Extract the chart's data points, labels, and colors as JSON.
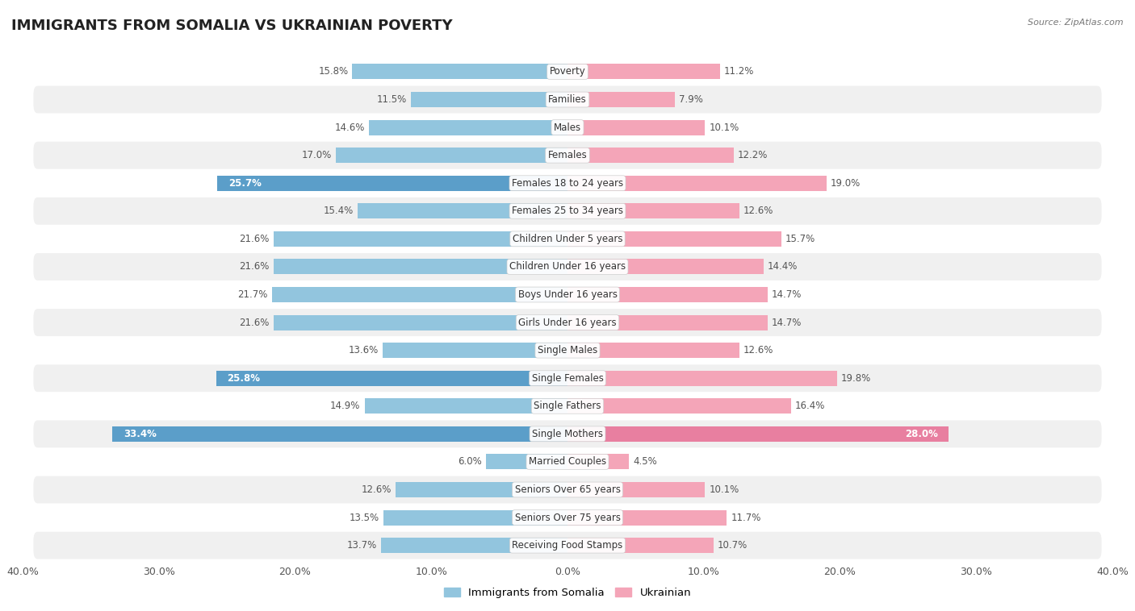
{
  "title": "IMMIGRANTS FROM SOMALIA VS UKRAINIAN POVERTY",
  "source": "Source: ZipAtlas.com",
  "categories": [
    "Poverty",
    "Families",
    "Males",
    "Females",
    "Females 18 to 24 years",
    "Females 25 to 34 years",
    "Children Under 5 years",
    "Children Under 16 years",
    "Boys Under 16 years",
    "Girls Under 16 years",
    "Single Males",
    "Single Females",
    "Single Fathers",
    "Single Mothers",
    "Married Couples",
    "Seniors Over 65 years",
    "Seniors Over 75 years",
    "Receiving Food Stamps"
  ],
  "somalia_values": [
    15.8,
    11.5,
    14.6,
    17.0,
    25.7,
    15.4,
    21.6,
    21.6,
    21.7,
    21.6,
    13.6,
    25.8,
    14.9,
    33.4,
    6.0,
    12.6,
    13.5,
    13.7
  ],
  "ukrainian_values": [
    11.2,
    7.9,
    10.1,
    12.2,
    19.0,
    12.6,
    15.7,
    14.4,
    14.7,
    14.7,
    12.6,
    19.8,
    16.4,
    28.0,
    4.5,
    10.1,
    11.7,
    10.7
  ],
  "somalia_color": "#92c5de",
  "ukrainian_color": "#f4a5b8",
  "highlight_somalia": [
    4,
    11,
    13
  ],
  "highlight_ukrainian": [
    13
  ],
  "highlight_somalia_color": "#5b9ec9",
  "highlight_ukrainian_color": "#e87fa0",
  "xlim": 40.0,
  "background_color": "#ffffff",
  "row_bg_odd": "#f0f0f0",
  "row_bg_even": "#ffffff",
  "bar_height": 0.55,
  "title_fontsize": 13,
  "label_fontsize": 8.5,
  "value_fontsize": 8.5,
  "value_inside_fontsize": 8.5,
  "legend_somalia": "Immigrants from Somalia",
  "legend_ukrainian": "Ukrainian"
}
